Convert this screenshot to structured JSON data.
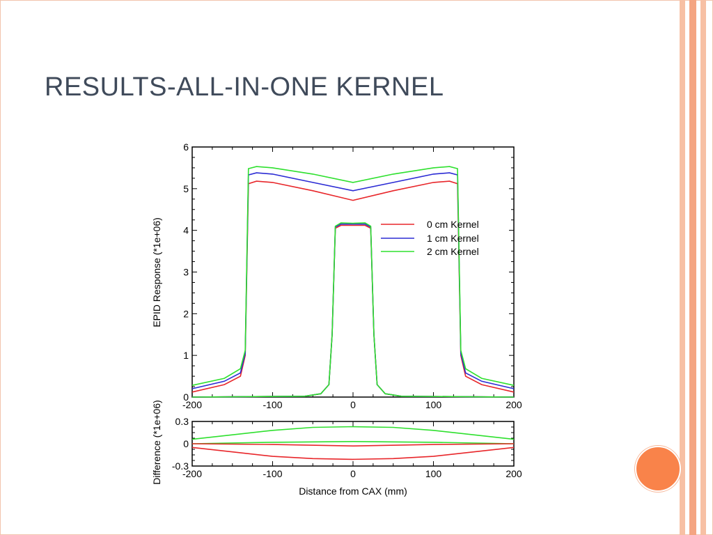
{
  "slide": {
    "title": "RESULTS-ALL-IN-ONE KERNEL",
    "accent_color": "#f9834a",
    "stripe_colors": [
      "#f7c0a4",
      "#f4a582",
      "#f7c0a4"
    ]
  },
  "chart_data": [
    {
      "type": "line",
      "title": "",
      "xlabel": "",
      "ylabel": "EPID Response (*1e+06)",
      "xlim": [
        -200,
        200
      ],
      "ylim": [
        0,
        6
      ],
      "xticks": [
        -200,
        -100,
        0,
        100,
        200
      ],
      "yticks": [
        0,
        1,
        2,
        3,
        4,
        5,
        6
      ],
      "legend_position": "center-right",
      "series": [
        {
          "name": "0 cm Kernel",
          "color": "#e8262a",
          "large_field": {
            "x": [
              -200,
              -160,
              -140,
              -134,
              -130,
              -120,
              -100,
              -50,
              0,
              50,
              100,
              120,
              130,
              134,
              140,
              160,
              200
            ],
            "y": [
              0.12,
              0.3,
              0.5,
              1.0,
              5.12,
              5.18,
              5.15,
              4.95,
              4.72,
              4.95,
              5.15,
              5.18,
              5.12,
              1.0,
              0.5,
              0.3,
              0.12
            ]
          },
          "small_field": {
            "x": [
              -200,
              -60,
              -40,
              -30,
              -26,
              -22,
              -15,
              0,
              15,
              22,
              26,
              30,
              40,
              60,
              200
            ],
            "y": [
              0.0,
              0.02,
              0.08,
              0.3,
              1.5,
              4.05,
              4.12,
              4.12,
              4.12,
              4.05,
              1.5,
              0.3,
              0.08,
              0.02,
              0.0
            ]
          }
        },
        {
          "name": "1 cm Kernel",
          "color": "#2b2bd4",
          "large_field": {
            "x": [
              -200,
              -160,
              -140,
              -134,
              -130,
              -120,
              -100,
              -50,
              0,
              50,
              100,
              120,
              130,
              134,
              140,
              160,
              200
            ],
            "y": [
              0.2,
              0.38,
              0.58,
              1.05,
              5.33,
              5.38,
              5.35,
              5.15,
              4.95,
              5.15,
              5.35,
              5.38,
              5.33,
              1.05,
              0.58,
              0.38,
              0.2
            ]
          },
          "small_field": {
            "x": [
              -200,
              -60,
              -40,
              -30,
              -26,
              -22,
              -15,
              0,
              15,
              22,
              26,
              30,
              40,
              60,
              200
            ],
            "y": [
              0.0,
              0.02,
              0.08,
              0.3,
              1.5,
              4.08,
              4.15,
              4.15,
              4.15,
              4.08,
              1.5,
              0.3,
              0.08,
              0.02,
              0.0
            ]
          }
        },
        {
          "name": "2 cm Kernel",
          "color": "#2ee02e",
          "large_field": {
            "x": [
              -200,
              -160,
              -140,
              -134,
              -130,
              -120,
              -100,
              -50,
              0,
              50,
              100,
              120,
              130,
              134,
              140,
              160,
              200
            ],
            "y": [
              0.28,
              0.45,
              0.68,
              1.12,
              5.48,
              5.53,
              5.5,
              5.35,
              5.15,
              5.35,
              5.5,
              5.53,
              5.48,
              1.12,
              0.68,
              0.45,
              0.28
            ]
          },
          "small_field": {
            "x": [
              -200,
              -60,
              -40,
              -30,
              -26,
              -22,
              -15,
              0,
              15,
              22,
              26,
              30,
              40,
              60,
              200
            ],
            "y": [
              0.0,
              0.02,
              0.08,
              0.3,
              1.5,
              4.1,
              4.18,
              4.17,
              4.18,
              4.1,
              1.5,
              0.3,
              0.08,
              0.02,
              0.0
            ]
          }
        }
      ]
    },
    {
      "type": "line",
      "title": "",
      "xlabel": "Distance from CAX (mm)",
      "ylabel": "Difference (*1e+06)",
      "xlim": [
        -200,
        200
      ],
      "ylim": [
        -0.3,
        0.3
      ],
      "xticks": [
        -200,
        -100,
        0,
        100,
        200
      ],
      "yticks": [
        -0.3,
        0,
        0.3
      ],
      "ytick_labels": [
        "-0.3",
        "0",
        "0.3"
      ],
      "series": [
        {
          "color": "#2ee02e",
          "x": [
            -200,
            -150,
            -100,
            -50,
            0,
            50,
            100,
            150,
            200
          ],
          "y": [
            0.06,
            0.12,
            0.18,
            0.22,
            0.23,
            0.22,
            0.18,
            0.12,
            0.06
          ]
        },
        {
          "color": "#2ee02e",
          "x": [
            -200,
            -100,
            0,
            100,
            200
          ],
          "y": [
            0.0,
            0.02,
            0.03,
            0.02,
            0.0
          ]
        },
        {
          "color": "#e8262a",
          "x": [
            -200,
            -100,
            0,
            100,
            200
          ],
          "y": [
            0.0,
            -0.01,
            -0.03,
            -0.01,
            0.0
          ]
        },
        {
          "color": "#e8262a",
          "x": [
            -200,
            -150,
            -100,
            -50,
            0,
            50,
            100,
            150,
            200
          ],
          "y": [
            -0.05,
            -0.11,
            -0.17,
            -0.2,
            -0.21,
            -0.2,
            -0.17,
            -0.11,
            -0.05
          ]
        }
      ]
    }
  ]
}
